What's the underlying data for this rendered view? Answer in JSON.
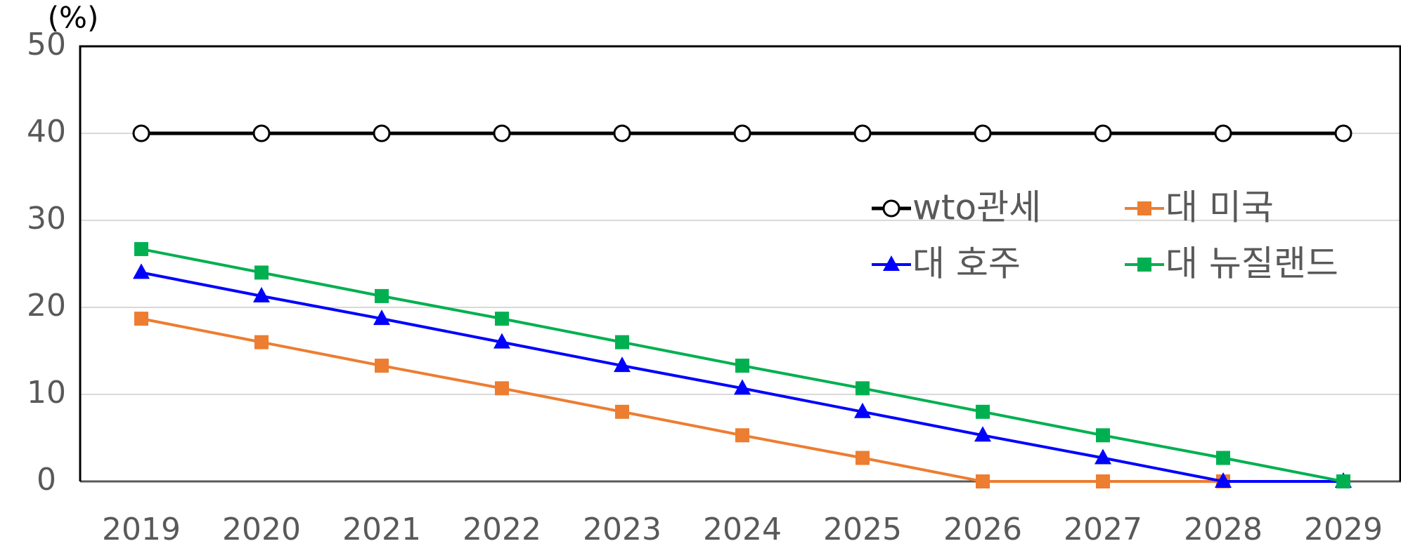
{
  "chart_data": {
    "type": "line",
    "ylabel": "(%)",
    "categories": [
      "2019",
      "2020",
      "2021",
      "2022",
      "2023",
      "2024",
      "2025",
      "2026",
      "2027",
      "2028",
      "2029"
    ],
    "series": [
      {
        "name": "wto관세",
        "color": "#000000",
        "marker": "circle",
        "values": [
          40,
          40,
          40,
          40,
          40,
          40,
          40,
          40,
          40,
          40,
          40
        ]
      },
      {
        "name": "대 미국",
        "color": "#ed7d31",
        "marker": "square",
        "values": [
          18.7,
          16,
          13.3,
          10.7,
          8,
          5.3,
          2.7,
          0,
          0,
          0,
          0
        ]
      },
      {
        "name": "대 호주",
        "color": "#0000ff",
        "marker": "triangle",
        "values": [
          24,
          21.3,
          18.7,
          16,
          13.3,
          10.7,
          8,
          5.3,
          2.7,
          0,
          0
        ]
      },
      {
        "name": "대 뉴질랜드",
        "color": "#00b050",
        "marker": "square",
        "values": [
          26.7,
          24,
          21.3,
          18.7,
          16,
          13.3,
          10.7,
          8,
          5.3,
          2.7,
          0
        ]
      }
    ],
    "ylim": [
      0,
      50
    ],
    "yticks": [
      0,
      10,
      20,
      30,
      40,
      50
    ],
    "grid": true,
    "legend": "right"
  }
}
